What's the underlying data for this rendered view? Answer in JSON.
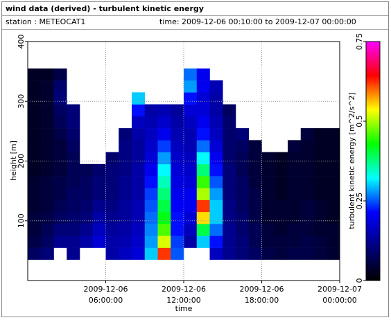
{
  "chart_data": {
    "type": "heatmap",
    "title": "wind data (derived) - turbulent kinetic energy",
    "station": "station : METEOCAT1",
    "time_range": "time: 2009-12-06 00:10:00 to 2009-12-07 00:00:00",
    "xlabel": "time",
    "ylabel": "height [m]",
    "colorbar_label": "turbulent kinetic energy [m^2/s^2]",
    "xlim": [
      "2009-12-06 00:00:00",
      "2009-12-07 00:00:00"
    ],
    "xticks": [
      "2009-12-06 06:00:00",
      "2009-12-06 12:00:00",
      "2009-12-06 18:00:00",
      "2009-12-07 00:00:00"
    ],
    "ylim": [
      0,
      400
    ],
    "yticks": [
      100,
      200,
      300,
      400
    ],
    "clim": [
      0,
      0.75
    ],
    "cticks": [
      0,
      0.25,
      0.5,
      0.75
    ],
    "colormap": [
      "#000000",
      "#000080",
      "#0000ff",
      "#00ffff",
      "#00ff00",
      "#ffff00",
      "#ff0000",
      "#ff00ff"
    ],
    "grid": true,
    "x_bins": [
      "2009-12-06 00:00:00",
      "2009-12-06 01:00:00",
      "2009-12-06 02:00:00",
      "2009-12-06 03:00:00",
      "2009-12-06 04:00:00",
      "2009-12-06 05:00:00",
      "2009-12-06 06:00:00",
      "2009-12-06 07:00:00",
      "2009-12-06 08:00:00",
      "2009-12-06 09:00:00",
      "2009-12-06 10:00:00",
      "2009-12-06 11:00:00",
      "2009-12-06 12:00:00",
      "2009-12-06 13:00:00",
      "2009-12-06 14:00:00",
      "2009-12-06 15:00:00",
      "2009-12-06 16:00:00",
      "2009-12-06 17:00:00",
      "2009-12-06 18:00:00",
      "2009-12-06 19:00:00",
      "2009-12-06 20:00:00",
      "2009-12-06 21:00:00",
      "2009-12-06 22:00:00",
      "2009-12-06 23:00:00",
      "2009-12-07 00:00:00"
    ],
    "y_bins": [
      35,
      55,
      75,
      95,
      115,
      135,
      155,
      175,
      195,
      215,
      235,
      255,
      275,
      295,
      315,
      335,
      355
    ],
    "values": [
      [
        0.08,
        0.06,
        0.05,
        0.05,
        0.04,
        0.04,
        0.04,
        0.03,
        0.03,
        0.03,
        0.03,
        0.03,
        0.03,
        0.03,
        0.03,
        0.03
      ],
      [
        0.1,
        0.08,
        0.07,
        0.06,
        0.05,
        0.05,
        0.05,
        0.04,
        0.04,
        0.04,
        0.04,
        0.04,
        0.04,
        0.04,
        0.04,
        0.03
      ],
      [
        null,
        0.12,
        0.1,
        0.08,
        0.07,
        0.06,
        0.06,
        0.05,
        0.05,
        0.05,
        0.06,
        0.07,
        0.08,
        0.1,
        0.09,
        0.06
      ],
      [
        0.12,
        0.12,
        0.1,
        0.09,
        0.08,
        0.08,
        0.07,
        0.07,
        0.07,
        0.08,
        0.09,
        0.1,
        0.1,
        null,
        null,
        null
      ],
      [
        null,
        0.14,
        0.12,
        0.1,
        0.09,
        0.08,
        0.08,
        0.07,
        null,
        null,
        null,
        null,
        null,
        null,
        null,
        null
      ],
      [
        null,
        0.18,
        0.16,
        0.14,
        0.12,
        0.1,
        0.1,
        0.09,
        null,
        null,
        null,
        null,
        null,
        null,
        null,
        null
      ],
      [
        0.14,
        0.14,
        0.13,
        0.12,
        0.11,
        0.1,
        0.1,
        0.1,
        0.09,
        null,
        null,
        null,
        null,
        null,
        null,
        null
      ],
      [
        0.16,
        0.15,
        0.14,
        0.13,
        0.13,
        0.12,
        0.12,
        0.11,
        0.11,
        0.11,
        0.1,
        null,
        null,
        null,
        null,
        null
      ],
      [
        0.18,
        0.17,
        0.16,
        0.15,
        0.15,
        0.14,
        0.14,
        0.14,
        0.13,
        0.13,
        0.14,
        0.16,
        0.22,
        0.3,
        null,
        null
      ],
      [
        0.3,
        0.28,
        0.27,
        0.26,
        0.25,
        0.24,
        0.22,
        0.2,
        0.18,
        0.17,
        0.16,
        0.15,
        0.14,
        null,
        null,
        null
      ],
      [
        0.62,
        0.52,
        0.46,
        0.42,
        0.4,
        0.38,
        0.35,
        0.32,
        0.28,
        0.24,
        0.2,
        0.17,
        0.15,
        null,
        null,
        null
      ],
      [
        0.25,
        0.24,
        0.22,
        0.22,
        0.21,
        0.2,
        0.19,
        0.18,
        0.17,
        0.16,
        0.15,
        0.14,
        0.13,
        null,
        null,
        null
      ],
      [
        null,
        0.14,
        0.16,
        0.18,
        0.2,
        0.2,
        0.18,
        0.17,
        0.16,
        0.15,
        0.15,
        0.16,
        0.18,
        0.22,
        0.28,
        0.26
      ],
      [
        null,
        0.3,
        0.4,
        0.55,
        0.62,
        0.5,
        0.45,
        0.38,
        0.32,
        0.26,
        0.22,
        0.2,
        0.18,
        0.18,
        0.2,
        0.2
      ],
      [
        0.16,
        0.22,
        0.26,
        0.3,
        0.3,
        0.28,
        0.25,
        0.22,
        0.2,
        0.18,
        0.16,
        0.15,
        0.14,
        0.14,
        0.15,
        null
      ],
      [
        0.12,
        0.12,
        0.12,
        0.11,
        0.11,
        0.1,
        0.1,
        0.1,
        0.09,
        0.09,
        0.09,
        0.09,
        0.08,
        null,
        null,
        null
      ],
      [
        0.1,
        0.1,
        0.09,
        0.09,
        0.08,
        0.08,
        0.08,
        0.07,
        0.07,
        0.08,
        0.1,
        null,
        null,
        null,
        null,
        null
      ],
      [
        0.08,
        0.07,
        0.07,
        0.06,
        0.06,
        0.06,
        0.05,
        0.05,
        0.05,
        0.05,
        null,
        null,
        null,
        null,
        null,
        null
      ],
      [
        0.06,
        0.05,
        0.05,
        0.04,
        0.04,
        0.04,
        0.04,
        0.04,
        0.04,
        null,
        null,
        null,
        null,
        null,
        null,
        null
      ],
      [
        0.05,
        0.05,
        0.04,
        0.04,
        0.04,
        0.03,
        0.03,
        0.03,
        0.03,
        null,
        null,
        null,
        null,
        null,
        null,
        null
      ],
      [
        0.06,
        0.05,
        0.05,
        0.04,
        0.04,
        0.04,
        0.04,
        0.04,
        0.04,
        0.05,
        null,
        null,
        null,
        null,
        null,
        null
      ],
      [
        0.06,
        0.06,
        0.05,
        0.05,
        0.05,
        0.04,
        0.04,
        0.04,
        0.04,
        0.04,
        0.05,
        null,
        null,
        null,
        null,
        null
      ],
      [
        0.05,
        0.05,
        0.04,
        0.04,
        0.04,
        0.03,
        0.03,
        0.03,
        0.03,
        0.03,
        0.03,
        null,
        null,
        null,
        null,
        null
      ],
      [
        0.04,
        0.04,
        0.04,
        0.03,
        0.03,
        0.03,
        0.03,
        0.03,
        0.03,
        0.03,
        0.03,
        null,
        null,
        null,
        null,
        null
      ]
    ]
  }
}
